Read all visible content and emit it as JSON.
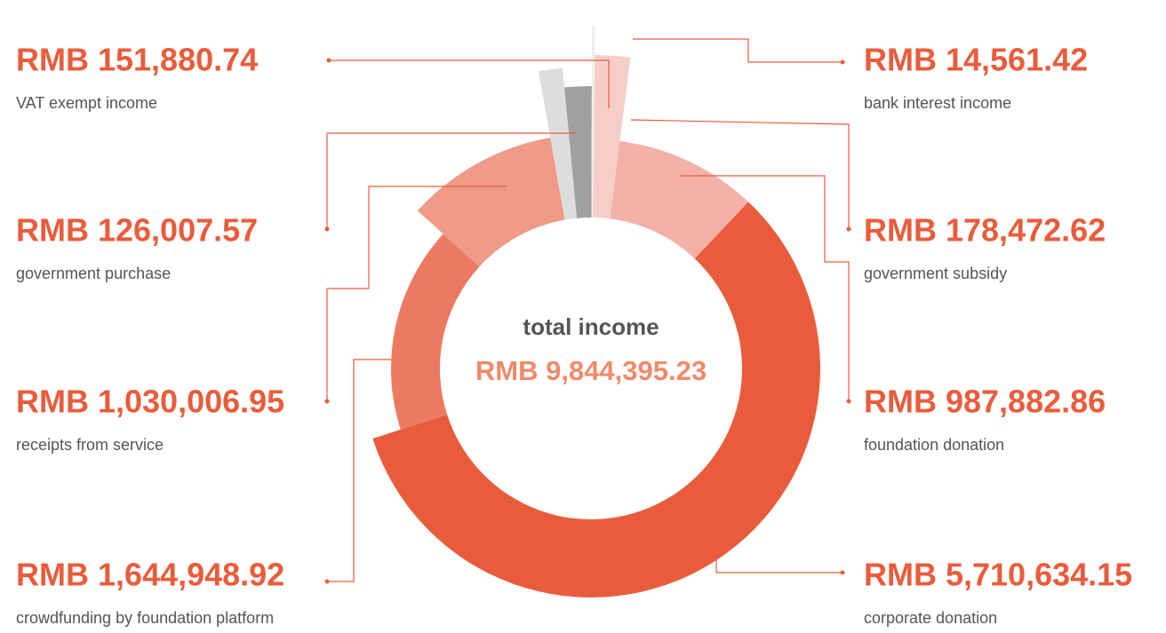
{
  "chart_data": {
    "type": "rose",
    "center_title": "total income",
    "center_value": {
      "value": 9844395.23,
      "label": "RMB 9,844,395.23"
    },
    "categories": [
      "government purchase",
      "VAT exempt income",
      "bank interest income",
      "government subsidy",
      "foundation donation",
      "corporate donation",
      "crowdfunding by foundation platform",
      "receipts from service"
    ],
    "values": [
      126007.57,
      151880.74,
      14561.42,
      178472.62,
      987882.86,
      5710634.15,
      1644948.92,
      1030006.95
    ],
    "value_labels": [
      "RMB 126,007.57",
      "RMB 151,880.74",
      "RMB 14,561.42",
      "RMB 178,472.62",
      "RMB 987,882.86",
      "RMB 5,710,634.15",
      "RMB 1,644,948.92",
      "RMB 1,030,006.95"
    ],
    "colors": [
      "#dcdedd",
      "#a0a09f",
      "#eef0f0",
      "#f7cdc8",
      "#f5b0a7",
      "#e95c3b",
      "#ec7a60",
      "#f09a88"
    ]
  }
}
